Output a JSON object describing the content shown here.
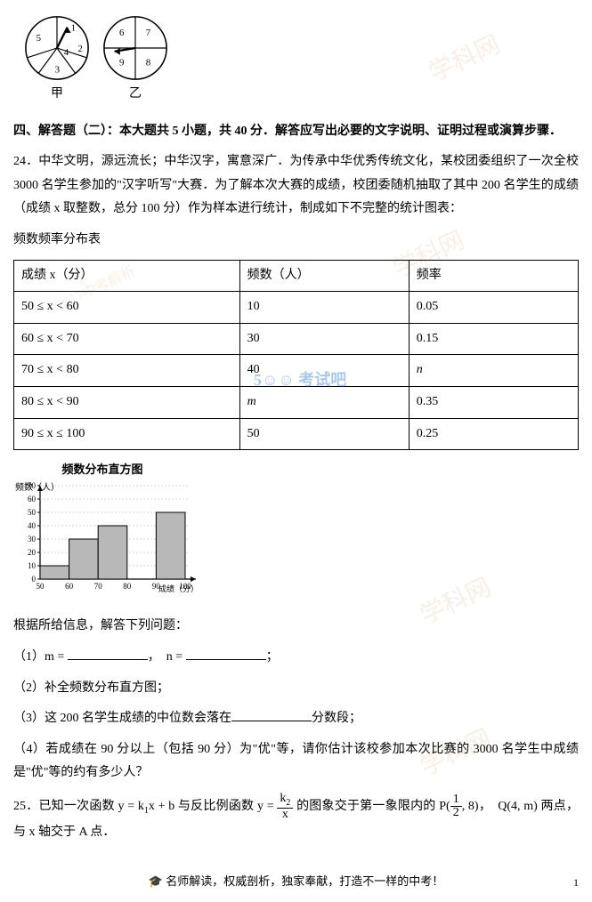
{
  "spinners": {
    "a": {
      "label": "甲",
      "sectors": [
        "1",
        "2",
        "3",
        "4",
        "5"
      ]
    },
    "b": {
      "label": "乙",
      "sectors": [
        "6",
        "7",
        "8",
        "9"
      ]
    }
  },
  "section": {
    "title": "四、解答题（二）：本大题共 5 小题，共 40 分．解答应写出必要的文字说明、证明过程或演算步骤．"
  },
  "q24": {
    "text": "24．中华文明，源远流长；中华汉字，寓意深广．为传承中华优秀传统文化，某校团委组织了一次全校 3000 名学生参加的\"汉字听写\"大赛．为了解本次大赛的成绩，校团委随机抽取了其中 200 名学生的成绩（成绩 x 取整数，总分 100 分）作为样本进行统计，制成如下不完整的统计图表：",
    "table_caption": "频数频率分布表",
    "table": {
      "header": [
        "成绩 x（分）",
        "频数（人）",
        "频率"
      ],
      "rows": [
        {
          "range": "50 ≤ x < 60",
          "freq": "10",
          "rate": "0.05"
        },
        {
          "range": "60 ≤ x < 70",
          "freq": "30",
          "rate": "0.15"
        },
        {
          "range": "70 ≤ x < 80",
          "freq": "40",
          "rate": "n"
        },
        {
          "range": "80 ≤ x < 90",
          "freq": "m",
          "rate": "0.35"
        },
        {
          "range": "90 ≤ x ≤ 100",
          "freq": "50",
          "rate": "0.25"
        }
      ],
      "col_widths": [
        "40%",
        "30%",
        "30%"
      ]
    },
    "histogram": {
      "title": "频数分布直方图",
      "ylabel": "频数（人）",
      "xlabel": "成绩（分）",
      "yticks": [
        0,
        10,
        20,
        30,
        40,
        50,
        60,
        70
      ],
      "xticks": [
        50,
        60,
        70,
        80,
        90,
        100
      ],
      "bars": [
        {
          "x": 50,
          "h": 10
        },
        {
          "x": 60,
          "h": 30
        },
        {
          "x": 70,
          "h": 40
        },
        {
          "x": 90,
          "h": 50
        }
      ],
      "bar_color": "#b8b8b8",
      "axis_color": "#000000",
      "grid_color": "#aaaaaa",
      "bg_color": "#ffffff"
    },
    "followup": "根据所给信息，解答下列问题：",
    "sub1_a": "（1）m = ",
    "sub1_b": "，　n = ",
    "sub1_c": "；",
    "sub2": "（2）补全频数分布直方图；",
    "sub3_a": "（3）这 200 名学生成绩的中位数会落在",
    "sub3_b": "分数段；",
    "sub4": "（4）若成绩在 90 分以上（包括 90 分）为\"优\"等，请你估计该校参加本次比赛的 3000 名学生中成绩是\"优\"等的约有多少人？"
  },
  "q25": {
    "pre": "25．已知一次函数 y = k",
    "mid1": "x + b 与反比例函数 y = ",
    "frac_num": "k",
    "frac_den": "x",
    "mid2": " 的图象交于第一象限内的 P(",
    "half_num": "1",
    "half_den": "2",
    "mid3": ", 8)，　Q(4, m) 两点，与 x 轴交于 A 点．",
    "k1_sub": "1",
    "k2_sub": "2"
  },
  "footer": {
    "text": "名师解读，权威剖析，独家奉献，打造不一样的中考！",
    "page": "1"
  },
  "watermarks": {
    "text": "学科网",
    "sub": "2017中考解析",
    "color": "rgba(200,140,60,0.12)"
  },
  "logo": {
    "text": "5☺☺ 考试吧"
  }
}
